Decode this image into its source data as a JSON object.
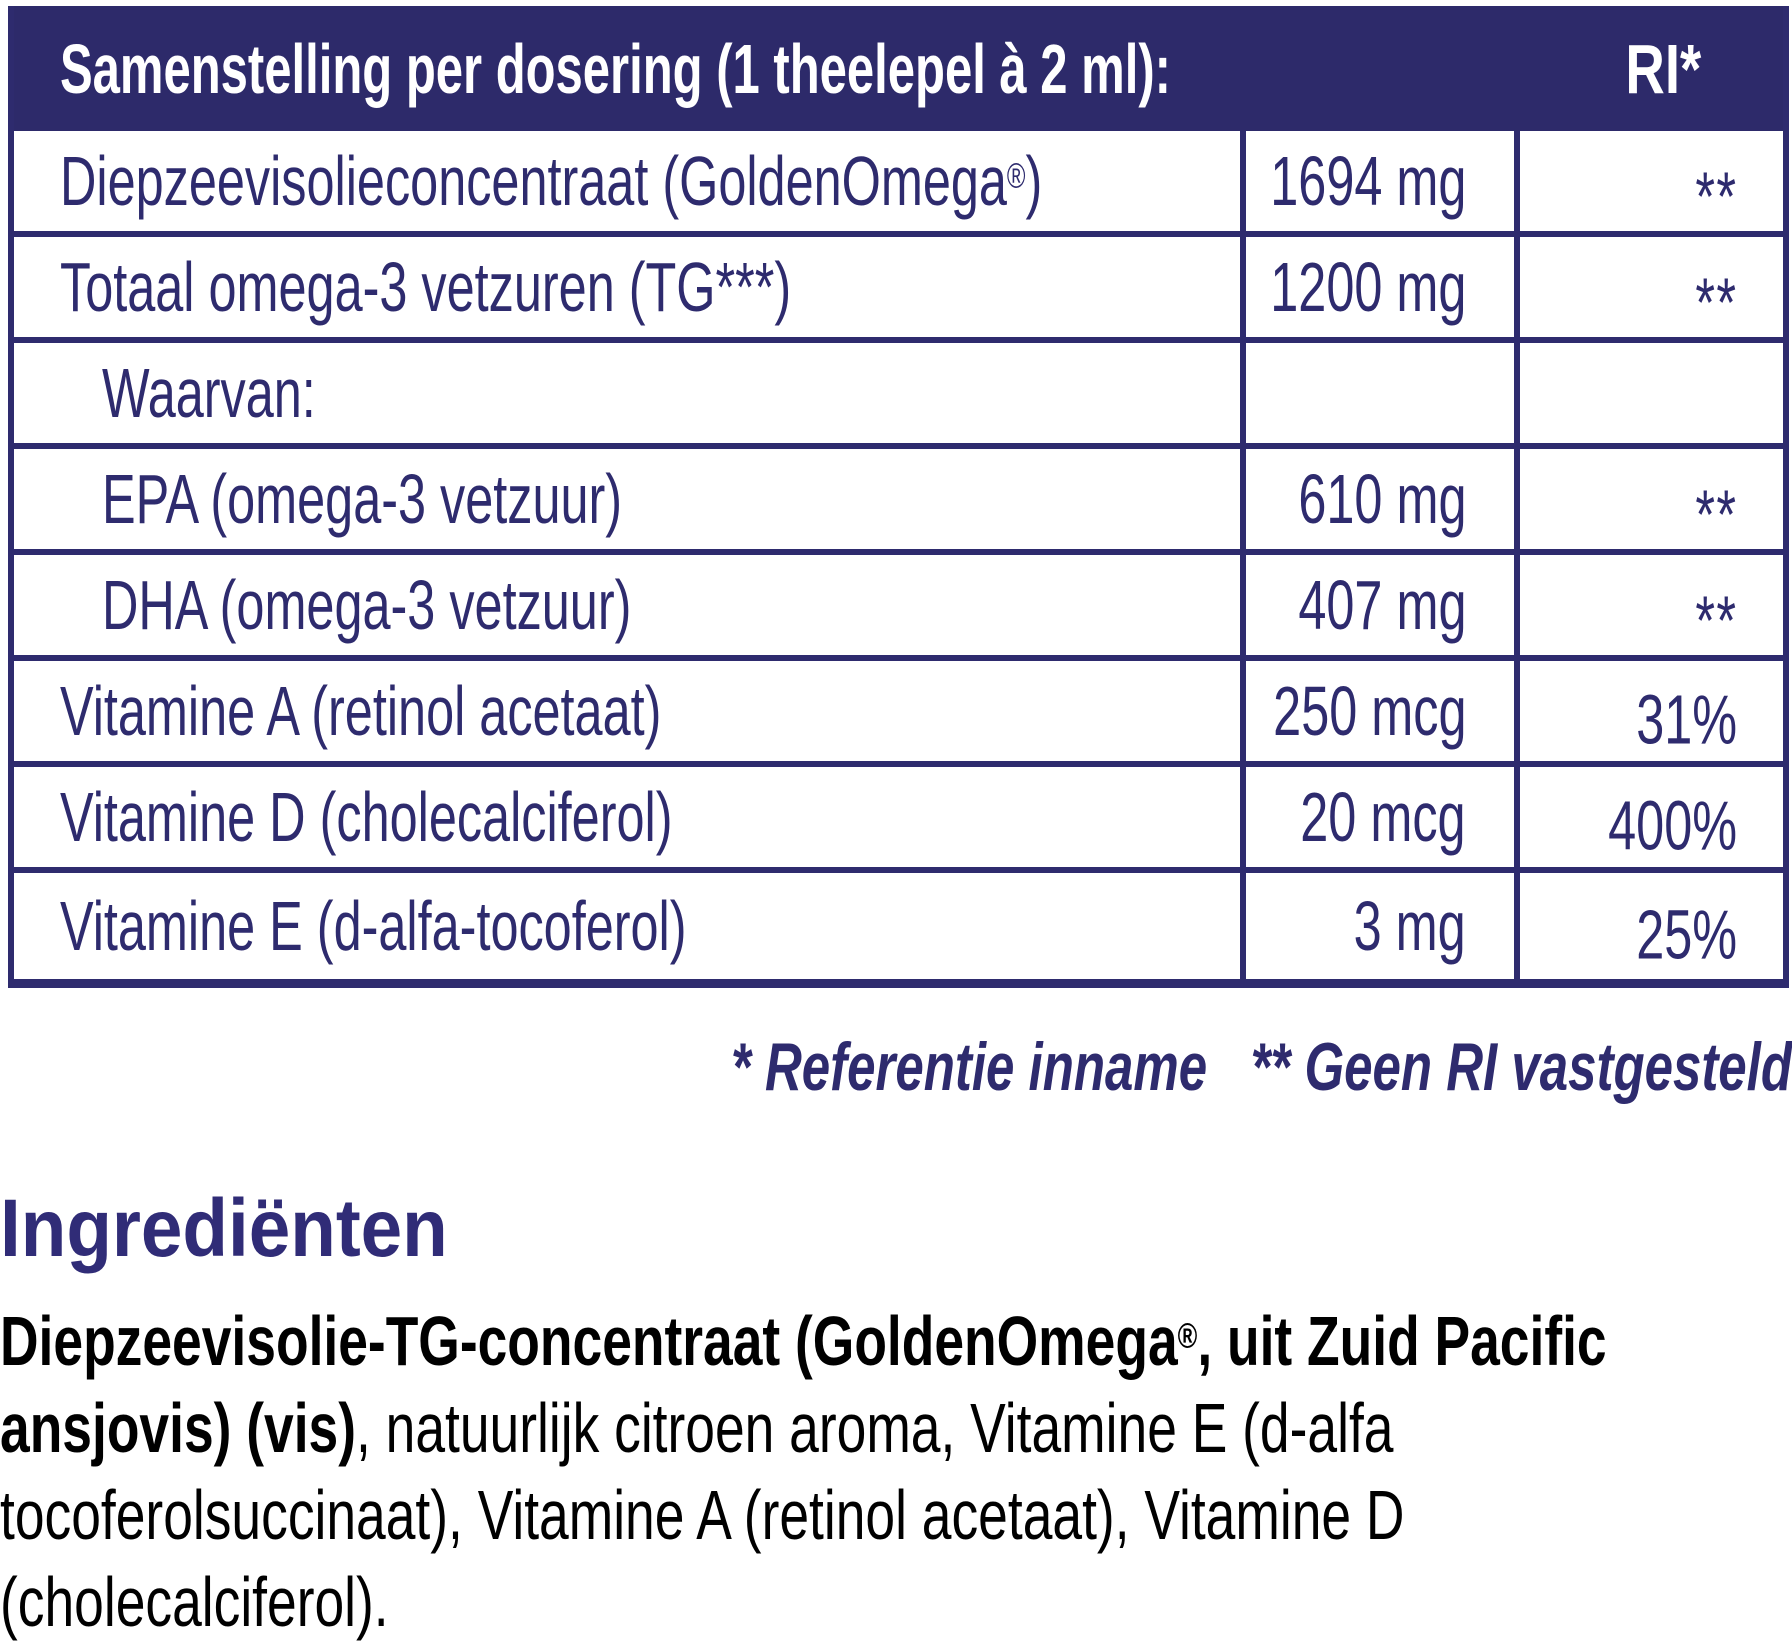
{
  "colors": {
    "header_bg": "#2d2a6a",
    "table_text": "#2e2b6e",
    "heading_text": "#302c77",
    "body_text": "#000000",
    "header_text": "#ffffff"
  },
  "table": {
    "header": {
      "title": "Samenstelling per dosering (1 theelepel à 2 ml):",
      "ri": "RI*"
    },
    "rows": [
      {
        "label": "Diepzeevisolieconcentraat (GoldenOmega®)",
        "amount": "1694 mg",
        "ri": "**",
        "indent": false
      },
      {
        "label": "Totaal omega-3 vetzuren (TG***)",
        "amount": "1200 mg",
        "ri": "**",
        "indent": false
      },
      {
        "label": "Waarvan:",
        "amount": "",
        "ri": "",
        "indent": true
      },
      {
        "label": "EPA (omega-3 vetzuur)",
        "amount": "610 mg",
        "ri": "**",
        "indent": true
      },
      {
        "label": "DHA (omega-3 vetzuur)",
        "amount": "407 mg",
        "ri": "**",
        "indent": true
      },
      {
        "label": "Vitamine A (retinol acetaat)",
        "amount": "250 mcg",
        "ri": "31%",
        "indent": false
      },
      {
        "label": "Vitamine D (cholecalciferol)",
        "amount": "20 mcg",
        "ri": "400%",
        "indent": false
      },
      {
        "label": "Vitamine E (d-alfa-tocoferol)",
        "amount": "3 mg",
        "ri": "25%",
        "indent": false
      }
    ]
  },
  "footnote": {
    "part1": "* Referentie inname",
    "part2": "** Geen RI vastgesteld"
  },
  "ingredients": {
    "heading": "Ingrediënten",
    "segments": [
      {
        "text": "Diepzeevisolie-TG-concentraat (GoldenOmega®, uit Zuid Pacific ansjovis) (vis)",
        "bold": true
      },
      {
        "text": ", natuurlijk citroen aroma, Vitamine E (d-alfa tocoferolsuccinaat), Vitamine A (retinol acetaat), Vitamine D (cholecalciferol).",
        "bold": false
      }
    ]
  }
}
